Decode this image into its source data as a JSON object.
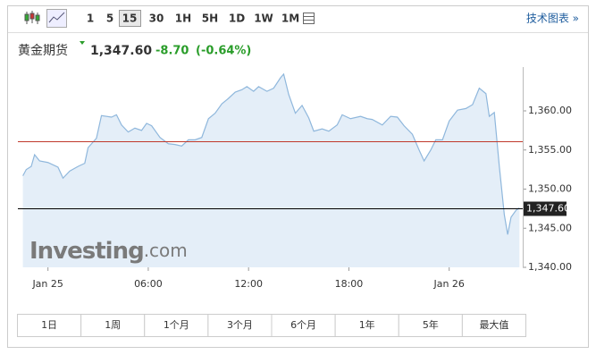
{
  "toolbar": {
    "intervals": [
      "1",
      "5",
      "15",
      "30",
      "1H",
      "5H",
      "1D",
      "1W",
      "1M"
    ],
    "selected_index": 2,
    "link": "技术图表 »"
  },
  "header": {
    "name": "黄金期货",
    "price": "1,347.60",
    "change": "-8.70",
    "change_pct": "(-0.64%)"
  },
  "chart_data": {
    "type": "line",
    "color": "#8fb7dc",
    "fill": "#e4eef8",
    "x": [
      -1.5,
      -1.3,
      -1.0,
      -0.8,
      -0.5,
      0.0,
      0.6,
      0.9,
      1.3,
      1.8,
      2.2,
      2.4,
      2.9,
      3.2,
      3.8,
      4.1,
      4.4,
      4.8,
      5.2,
      5.6,
      5.9,
      6.2,
      6.7,
      7.2,
      7.6,
      8.0,
      8.4,
      8.8,
      9.2,
      9.6,
      10.0,
      10.4,
      10.8,
      11.2,
      11.6,
      11.9,
      12.3,
      12.6,
      13.1,
      13.5,
      13.9,
      14.1,
      14.4,
      14.8,
      15.2,
      15.6,
      15.9,
      16.4,
      16.8,
      17.3,
      17.6,
      18.1,
      18.7,
      19.1,
      19.4,
      20.0,
      20.5,
      20.9,
      21.3,
      21.8,
      22.2,
      22.5,
      22.9,
      23.2,
      23.6,
      24.0,
      24.5,
      25.0,
      25.4,
      25.8,
      26.2,
      26.4,
      26.7,
      27.0,
      27.3,
      27.5,
      27.7,
      28.0,
      28.2
    ],
    "values": [
      1351.7,
      1352.5,
      1352.9,
      1354.4,
      1353.6,
      1353.4,
      1352.8,
      1351.4,
      1352.3,
      1352.9,
      1353.3,
      1355.3,
      1356.5,
      1359.4,
      1359.2,
      1359.5,
      1358.2,
      1357.3,
      1357.8,
      1357.5,
      1358.4,
      1358.1,
      1356.6,
      1355.8,
      1355.7,
      1355.5,
      1356.3,
      1356.3,
      1356.6,
      1359.0,
      1359.7,
      1360.9,
      1361.6,
      1362.4,
      1362.7,
      1363.1,
      1362.5,
      1363.1,
      1362.5,
      1362.9,
      1364.2,
      1364.7,
      1362.1,
      1359.7,
      1360.7,
      1359.1,
      1357.4,
      1357.7,
      1357.4,
      1358.2,
      1359.5,
      1359.0,
      1359.3,
      1359.0,
      1358.9,
      1358.2,
      1359.3,
      1359.2,
      1358.1,
      1357.0,
      1355.0,
      1353.6,
      1355.0,
      1356.3,
      1356.3,
      1358.7,
      1360.1,
      1360.3,
      1360.8,
      1362.9,
      1362.2,
      1359.3,
      1359.8,
      1352.9,
      1346.7,
      1344.2,
      1346.4,
      1347.3,
      1347.6
    ],
    "xlim": [
      -1.8,
      28.4
    ],
    "xticks": [
      {
        "value": 0,
        "label": "Jan 25"
      },
      {
        "value": 6,
        "label": "06:00"
      },
      {
        "value": 12,
        "label": "12:00"
      },
      {
        "value": 18,
        "label": "18:00"
      },
      {
        "value": 24,
        "label": "Jan 26"
      }
    ],
    "ylim": [
      1340,
      1365.6
    ],
    "yticks": [
      {
        "value": 1340,
        "label": "1,340.00"
      },
      {
        "value": 1345,
        "label": "1,345.00"
      },
      {
        "value": 1350,
        "label": "1,350.00"
      },
      {
        "value": 1355,
        "label": "1,355.00"
      },
      {
        "value": 1360,
        "label": "1,360.00"
      }
    ],
    "reference_lines": [
      {
        "value": 1356.1,
        "color": "#c0392b"
      },
      {
        "value": 1347.6,
        "label": "1,347.60",
        "color": "#000000"
      }
    ],
    "watermark": [
      "Investing",
      ".com"
    ]
  },
  "ranges": [
    "1日",
    "1周",
    "1个月",
    "3个月",
    "6个月",
    "1年",
    "5年",
    "最大值"
  ]
}
